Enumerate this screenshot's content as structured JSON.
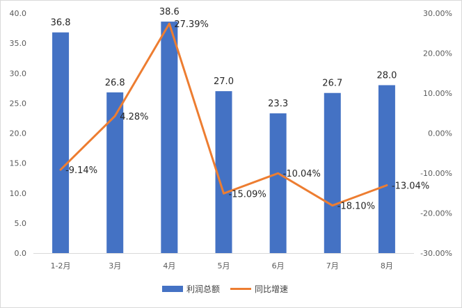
{
  "chart_data": {
    "type": "bar+line",
    "categories": [
      "1-2月",
      "3月",
      "4月",
      "5月",
      "6月",
      "7月",
      "8月"
    ],
    "series": [
      {
        "name": "利润总额",
        "type": "bar",
        "axis": "left",
        "values": [
          36.8,
          26.8,
          38.6,
          27.0,
          23.3,
          26.7,
          28.0
        ],
        "labels": [
          "36.8",
          "26.8",
          "38.6",
          "27.0",
          "23.3",
          "26.7",
          "28.0"
        ],
        "color": "#4472C4"
      },
      {
        "name": "同比增速",
        "type": "line",
        "axis": "right",
        "values": [
          -9.14,
          4.28,
          27.39,
          -15.09,
          -10.04,
          -18.1,
          -13.04
        ],
        "labels": [
          "-9.14%",
          "4.28%",
          "27.39%",
          "-15.09%",
          "-10.04%",
          "-18.10%",
          "-13.04%"
        ],
        "color": "#ED7D31"
      }
    ],
    "y_left": {
      "min": 0,
      "max": 40,
      "step": 5,
      "ticks": [
        "0.0",
        "5.0",
        "10.0",
        "15.0",
        "20.0",
        "25.0",
        "30.0",
        "35.0",
        "40.0"
      ]
    },
    "y_right": {
      "min": -30,
      "max": 30,
      "step": 10,
      "ticks": [
        "-30.00%",
        "-20.00%",
        "-10.00%",
        "0.00%",
        "10.00%",
        "20.00%",
        "30.00%"
      ]
    },
    "title": "",
    "xlabel": "",
    "ylabel": "",
    "grid": false,
    "legend_position": "bottom"
  }
}
